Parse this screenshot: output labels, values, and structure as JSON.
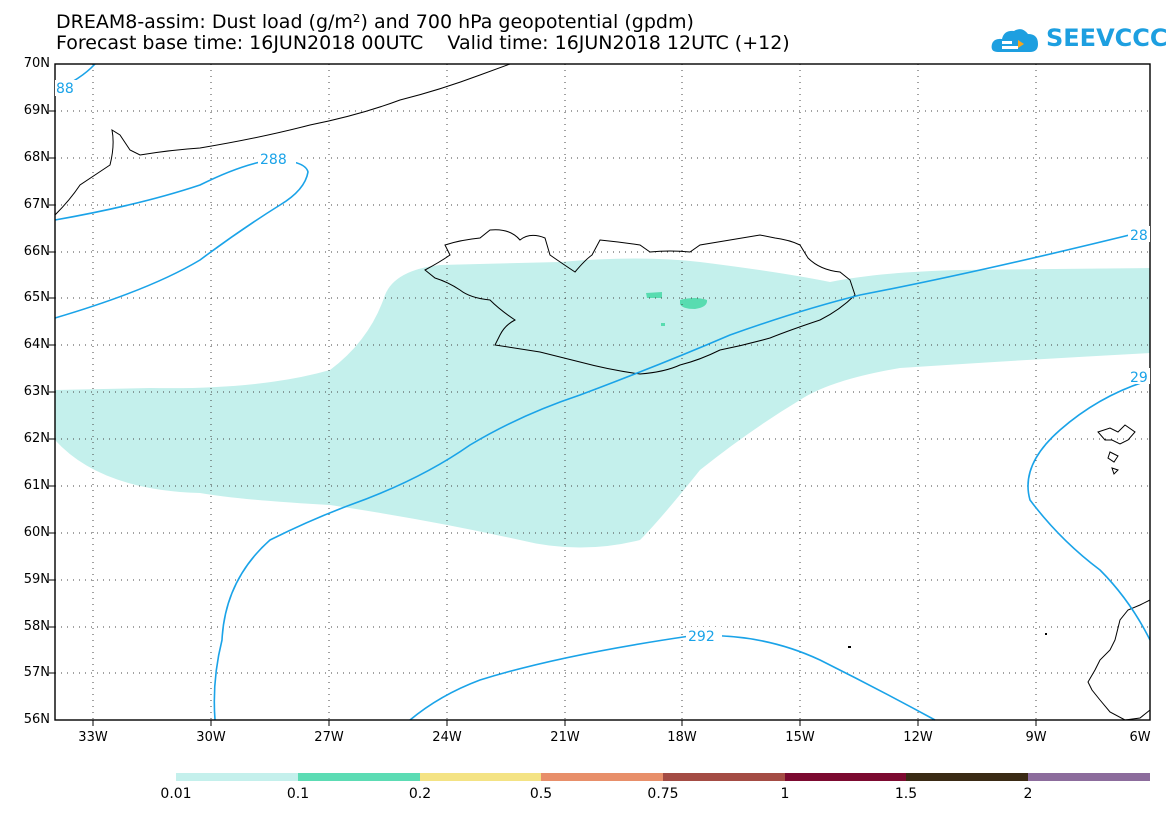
{
  "title": {
    "line1": "DREAM8-assim: Dust load (g/m²) and 700 hPa geopotential (gpdm)",
    "line2": "Forecast base time: 16JUN2018 00UTC    Valid time: 16JUN2018 12UTC (+12)"
  },
  "logo": {
    "text": "SEEVCCC",
    "icon": "cloud-icon"
  },
  "map": {
    "lat_labels": [
      "70N",
      "69N",
      "68N",
      "67N",
      "66N",
      "65N",
      "64N",
      "63N",
      "62N",
      "61N",
      "60N",
      "59N",
      "58N",
      "57N",
      "56N"
    ],
    "lon_labels": [
      "33W",
      "30W",
      "27W",
      "24W",
      "21W",
      "18W",
      "15W",
      "12W",
      "9W",
      "6W"
    ],
    "contour_labels": [
      "88",
      "288",
      "28",
      "29",
      "292"
    ],
    "lat_range": [
      56,
      70
    ],
    "lon_range": [
      -34.5,
      -6
    ],
    "colors": {
      "dust_fill": "#c4f0ec",
      "dust_fill_high": "#58dcb0",
      "contour": "#1aa3e8"
    }
  },
  "colorbar": {
    "labels": [
      "0.01",
      "0.1",
      "0.2",
      "0.5",
      "0.75",
      "1",
      "1.5",
      "2"
    ],
    "colors": [
      "#c4f0ec",
      "#5cdcb4",
      "#f4e384",
      "#e88f6a",
      "#a44c44",
      "#7c0a30",
      "#3a2a14",
      "#8c6c9c"
    ]
  }
}
